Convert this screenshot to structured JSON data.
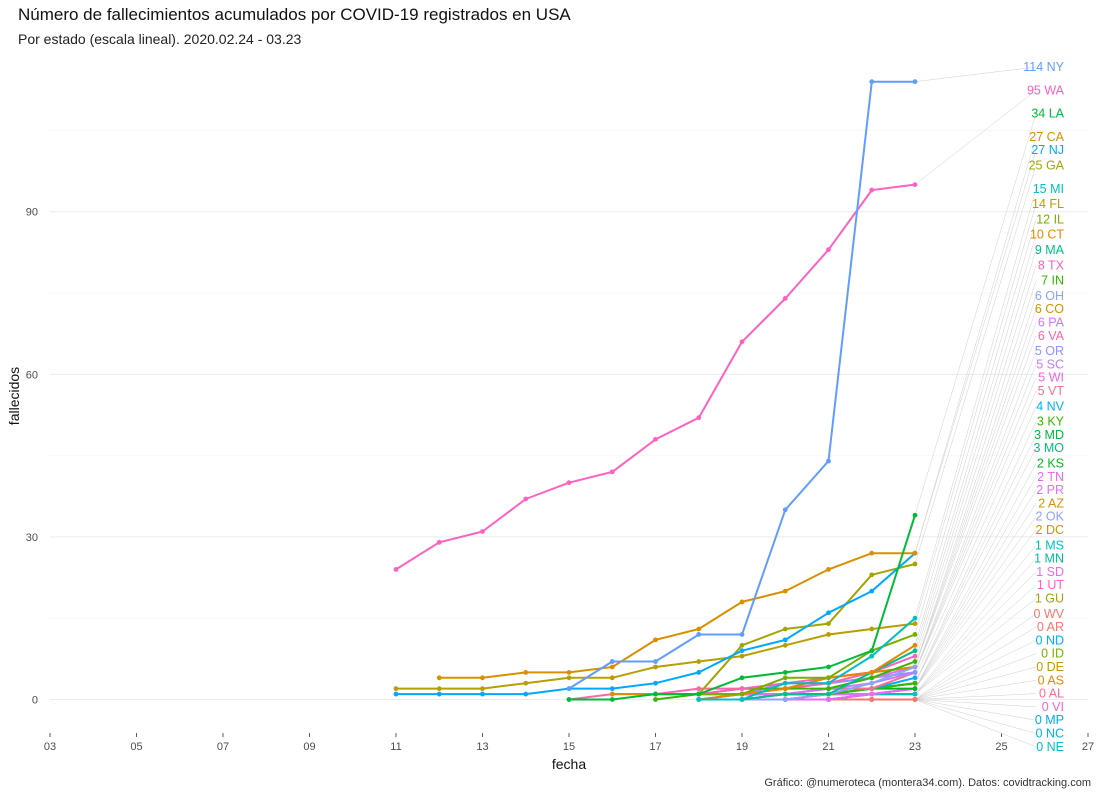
{
  "title": "Número de fallecimientos acumulados por COVID-19 registrados en USA",
  "subtitle": "Por estado (escala lineal). 2020.02.24 - 03.23",
  "caption": "Gráfico: @numeroteca (montera34.com). Datos: covidtracking.com",
  "chart_data": {
    "type": "line",
    "xlabel": "fecha",
    "ylabel": "fallecidos",
    "x_ticks": [
      "03",
      "05",
      "07",
      "09",
      "11",
      "13",
      "15",
      "17",
      "19",
      "21",
      "23",
      "25",
      "27"
    ],
    "x_tick_values": [
      3,
      5,
      7,
      9,
      11,
      13,
      15,
      17,
      19,
      21,
      23,
      25,
      27
    ],
    "y_ticks": [
      0,
      30,
      60,
      90
    ],
    "xlim": [
      3,
      27
    ],
    "ylim": [
      -6,
      118
    ],
    "grid": true,
    "x_month": "2020-03",
    "series": [
      {
        "name": "NY",
        "color": "#619CFF",
        "x": [
          15,
          16,
          17,
          18,
          19,
          20,
          21,
          22,
          23
        ],
        "values": [
          2,
          7,
          7,
          12,
          12,
          35,
          44,
          114,
          114
        ]
      },
      {
        "name": "WA",
        "color": "#FF61C3",
        "x": [
          11,
          12,
          13,
          14,
          15,
          16,
          17,
          18,
          19,
          20,
          21,
          22,
          23
        ],
        "values": [
          24,
          29,
          31,
          37,
          40,
          42,
          48,
          52,
          66,
          74,
          83,
          94,
          95
        ]
      },
      {
        "name": "LA",
        "color": "#00BA38",
        "x": [
          15,
          16,
          17,
          18,
          19,
          20,
          21,
          22,
          23
        ],
        "values": [
          0,
          0,
          1,
          1,
          4,
          5,
          6,
          9,
          34
        ]
      },
      {
        "name": "CA",
        "color": "#D89000",
        "x": [
          12,
          13,
          14,
          15,
          16,
          17,
          18,
          19,
          20,
          21,
          22,
          23
        ],
        "values": [
          4,
          4,
          5,
          5,
          6,
          11,
          13,
          18,
          20,
          24,
          27,
          27
        ]
      },
      {
        "name": "NJ",
        "color": "#00A9FF",
        "x": [
          11,
          12,
          13,
          14,
          15,
          16,
          17,
          18,
          19,
          20,
          21,
          22,
          23
        ],
        "values": [
          1,
          1,
          1,
          1,
          2,
          2,
          3,
          5,
          9,
          11,
          16,
          20,
          27
        ]
      },
      {
        "name": "GA",
        "color": "#A3A500",
        "x": [
          18,
          19,
          20,
          21,
          22,
          23
        ],
        "values": [
          1,
          10,
          13,
          14,
          23,
          25
        ]
      },
      {
        "name": "MI",
        "color": "#00BFC4",
        "x": [
          18,
          19,
          20,
          21,
          22,
          23
        ],
        "values": [
          0,
          0,
          3,
          3,
          8,
          15
        ]
      },
      {
        "name": "FL",
        "color": "#B79F00",
        "x": [
          11,
          12,
          13,
          14,
          15,
          16,
          17,
          18,
          19,
          20,
          21,
          22,
          23
        ],
        "values": [
          2,
          2,
          2,
          3,
          4,
          4,
          6,
          7,
          8,
          10,
          12,
          13,
          14
        ]
      },
      {
        "name": "IL",
        "color": "#7CAE00",
        "x": [
          17,
          18,
          19,
          20,
          21,
          22,
          23
        ],
        "values": [
          1,
          1,
          1,
          4,
          4,
          9,
          12
        ]
      },
      {
        "name": "CT",
        "color": "#E58700",
        "x": [
          18,
          19,
          20,
          21,
          22,
          23
        ],
        "values": [
          0,
          1,
          2,
          4,
          5,
          10
        ]
      },
      {
        "name": "MA",
        "color": "#00C08B",
        "x": [
          19,
          20,
          21,
          22,
          23
        ],
        "values": [
          0,
          1,
          1,
          5,
          9
        ]
      },
      {
        "name": "TX",
        "color": "#FF62BC",
        "x": [
          18,
          19,
          20,
          21,
          22,
          23
        ],
        "values": [
          1,
          2,
          3,
          4,
          5,
          8
        ]
      },
      {
        "name": "IN",
        "color": "#39B600",
        "x": [
          17,
          18,
          19,
          20,
          21,
          22,
          23
        ],
        "values": [
          0,
          1,
          2,
          2,
          2,
          4,
          7
        ]
      },
      {
        "name": "OH",
        "color": "#8EA3FF",
        "x": [
          19,
          20,
          21,
          22,
          23
        ],
        "values": [
          0,
          0,
          1,
          3,
          6
        ]
      },
      {
        "name": "CO",
        "color": "#D89000",
        "x": [
          16,
          17,
          18,
          19,
          20,
          21,
          22,
          23
        ],
        "values": [
          1,
          1,
          1,
          1,
          2,
          4,
          5,
          6
        ]
      },
      {
        "name": "PA",
        "color": "#DB72FB",
        "x": [
          18,
          19,
          20,
          21,
          22,
          23
        ],
        "values": [
          0,
          1,
          1,
          2,
          4,
          6
        ]
      },
      {
        "name": "VA",
        "color": "#FF65AC",
        "x": [
          15,
          16,
          17,
          18,
          19,
          20,
          21,
          22,
          23
        ],
        "values": [
          0,
          1,
          1,
          2,
          2,
          2,
          3,
          5,
          6
        ]
      },
      {
        "name": "OR",
        "color": "#9590FF",
        "x": [
          18,
          19,
          20,
          21,
          22,
          23
        ],
        "values": [
          1,
          1,
          3,
          3,
          4,
          5
        ]
      },
      {
        "name": "SC",
        "color": "#C77CFF",
        "x": [
          18,
          19,
          20,
          21,
          22,
          23
        ],
        "values": [
          1,
          1,
          1,
          2,
          3,
          5
        ]
      },
      {
        "name": "WI",
        "color": "#F763E0",
        "x": [
          19,
          20,
          21,
          22,
          23
        ],
        "values": [
          1,
          2,
          3,
          4,
          5
        ]
      },
      {
        "name": "VT",
        "color": "#FF6C91",
        "x": [
          19,
          20,
          21,
          22,
          23
        ],
        "values": [
          0,
          1,
          2,
          2,
          5
        ]
      },
      {
        "name": "NV",
        "color": "#00B0F6",
        "x": [
          19,
          20,
          21,
          22,
          23
        ],
        "values": [
          1,
          1,
          2,
          2,
          4
        ]
      },
      {
        "name": "KY",
        "color": "#39B600",
        "x": [
          18,
          19,
          20,
          21,
          22,
          23
        ],
        "values": [
          1,
          1,
          1,
          1,
          2,
          3
        ]
      },
      {
        "name": "MD",
        "color": "#00BA38",
        "x": [
          19,
          20,
          21,
          22,
          23
        ],
        "values": [
          1,
          1,
          1,
          2,
          3
        ]
      },
      {
        "name": "MO",
        "color": "#00BF7D",
        "x": [
          19,
          20,
          21,
          22,
          23
        ],
        "values": [
          1,
          1,
          1,
          2,
          3
        ]
      },
      {
        "name": "KS",
        "color": "#00B81F",
        "x": [
          18,
          19,
          20,
          21,
          22,
          23
        ],
        "values": [
          1,
          1,
          1,
          1,
          2,
          2
        ]
      },
      {
        "name": "TN",
        "color": "#E76BF3",
        "x": [
          20,
          21,
          22,
          23
        ],
        "values": [
          0,
          0,
          1,
          2
        ]
      },
      {
        "name": "PR",
        "color": "#DB72FB",
        "x": [
          20,
          21,
          22,
          23
        ],
        "values": [
          0,
          1,
          1,
          2
        ]
      },
      {
        "name": "AZ",
        "color": "#D89000",
        "x": [
          20,
          21,
          22,
          23
        ],
        "values": [
          0,
          1,
          1,
          2
        ]
      },
      {
        "name": "OK",
        "color": "#8EA3FF",
        "x": [
          18,
          19,
          20,
          21,
          22,
          23
        ],
        "values": [
          0,
          1,
          1,
          1,
          1,
          2
        ]
      },
      {
        "name": "DC",
        "color": "#C49A00",
        "x": [
          20,
          21,
          22,
          23
        ],
        "values": [
          0,
          1,
          1,
          2
        ]
      },
      {
        "name": "MS",
        "color": "#00BFC4",
        "x": [
          19,
          20,
          21,
          22,
          23
        ],
        "values": [
          0,
          1,
          1,
          1,
          1
        ]
      },
      {
        "name": "MN",
        "color": "#00C094",
        "x": [
          20,
          21,
          22,
          23
        ],
        "values": [
          0,
          0,
          1,
          1
        ]
      },
      {
        "name": "SD",
        "color": "#E76BF3",
        "x": [
          19,
          20,
          21,
          22,
          23
        ],
        "values": [
          1,
          1,
          1,
          1,
          1
        ]
      },
      {
        "name": "UT",
        "color": "#FF61C3",
        "x": [
          21,
          22,
          23
        ],
        "values": [
          0,
          1,
          1
        ]
      },
      {
        "name": "GU",
        "color": "#A3A500",
        "x": [
          21,
          22,
          23
        ],
        "values": [
          0,
          1,
          1
        ]
      },
      {
        "name": "WV",
        "color": "#F8766D",
        "x": [
          20,
          21,
          22,
          23
        ],
        "values": [
          0,
          0,
          0,
          0
        ]
      },
      {
        "name": "AR",
        "color": "#F8766D",
        "x": [
          20,
          21,
          22,
          23
        ],
        "values": [
          0,
          0,
          0,
          0
        ]
      },
      {
        "name": "ND",
        "color": "#00B0F6",
        "x": [
          20,
          21,
          22,
          23
        ],
        "values": [
          0,
          0,
          0,
          0
        ]
      },
      {
        "name": "ID",
        "color": "#7CAE00",
        "x": [
          20,
          21,
          22,
          23
        ],
        "values": [
          0,
          0,
          0,
          0
        ]
      },
      {
        "name": "DE",
        "color": "#C49A00",
        "x": [
          20,
          21,
          22,
          23
        ],
        "values": [
          0,
          0,
          0,
          0
        ]
      },
      {
        "name": "AS",
        "color": "#E58700",
        "x": [
          20,
          21,
          22,
          23
        ],
        "values": [
          0,
          0,
          0,
          0
        ]
      },
      {
        "name": "AL",
        "color": "#FF6C91",
        "x": [
          20,
          21,
          22,
          23
        ],
        "values": [
          0,
          0,
          0,
          0
        ]
      },
      {
        "name": "VI",
        "color": "#F763E0",
        "x": [
          20,
          21,
          22,
          23
        ],
        "values": [
          0,
          0,
          0,
          0
        ]
      },
      {
        "name": "MP",
        "color": "#00A9FF",
        "x": [
          22,
          23
        ],
        "values": [
          0,
          0
        ]
      },
      {
        "name": "NC",
        "color": "#00B0F6",
        "x": [
          18,
          19,
          20,
          21,
          22,
          23
        ],
        "values": [
          0,
          0,
          0,
          0,
          0,
          0
        ]
      },
      {
        "name": "NE",
        "color": "#00BFC4",
        "x": [
          18,
          19,
          20,
          21,
          22,
          23
        ],
        "values": [
          0,
          0,
          0,
          0,
          0,
          0
        ]
      }
    ]
  }
}
